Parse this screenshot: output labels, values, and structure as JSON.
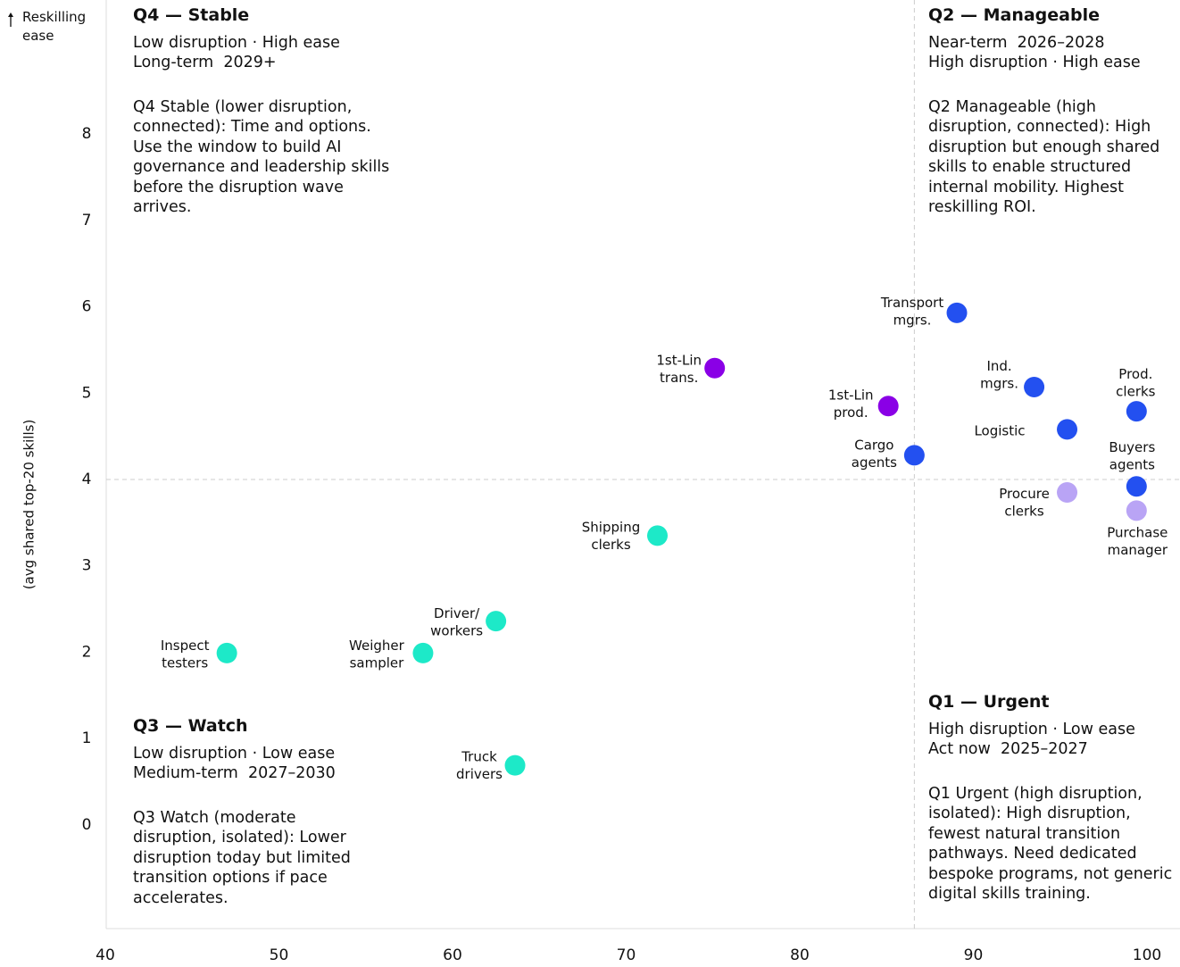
{
  "chart_data": {
    "type": "scatter",
    "y_label_top": "Reskilling ease",
    "y_label": "(avg shared top-20 skills)",
    "xlim": [
      40,
      100
    ],
    "ylim": [
      -1.2,
      9.5
    ],
    "xticks": [
      40,
      50,
      60,
      70,
      80,
      90,
      100
    ],
    "yticks": [
      0,
      1,
      2,
      3,
      4,
      5,
      6,
      7,
      8
    ],
    "x_divider": 86.6,
    "y_divider": 4,
    "x": [
      89.05,
      93.5,
      99.4,
      95.4,
      86.6,
      99.4,
      95.4,
      99.4,
      75.1,
      85.1,
      71.8,
      62.5,
      47.0,
      58.3,
      63.6
    ],
    "values": [
      5.93,
      5.07,
      4.79,
      4.58,
      4.28,
      3.92,
      3.85,
      3.64,
      5.29,
      4.85,
      3.35,
      2.36,
      1.99,
      1.99,
      0.69
    ],
    "labels": [
      [
        "Transport",
        "mgrs."
      ],
      [
        "Ind.",
        "mgrs."
      ],
      [
        "Prod.",
        "clerks"
      ],
      [
        "Logistic"
      ],
      [
        "Cargo",
        "agents"
      ],
      [
        "Buyers",
        "agents"
      ],
      [
        "Procure",
        "clerks"
      ],
      [
        "Purchase",
        "manager"
      ],
      [
        "1st-Lin",
        "trans."
      ],
      [
        "1st-Lin",
        "prod."
      ],
      [
        "Shipping",
        "clerks"
      ],
      [
        "Driver/",
        "workers"
      ],
      [
        "Inspect",
        "testers"
      ],
      [
        "Weigher",
        "sampler"
      ],
      [
        "Truck",
        "drivers"
      ]
    ],
    "colors": [
      "#2350f0",
      "#2350f0",
      "#2350f0",
      "#2350f0",
      "#2350f0",
      "#2350f0",
      "#b9a4f5",
      "#b9a4f5",
      "#8a00e6",
      "#8a00e6",
      "#1de9c8",
      "#1de9c8",
      "#1de9c8",
      "#1de9c8",
      "#1de9c8"
    ],
    "quadrants": [
      {
        "title": "Q4 — Stable",
        "lines": [
          "Low disruption · High ease",
          "Long-term  2029+"
        ],
        "description": "Q4 Stable (lower disruption, connected): Time and options. Use the window to build AI governance and leadership skills before the disruption wave arrives."
      },
      {
        "title": "Q2 — Manageable",
        "lines": [
          "Near-term  2026–2028",
          "High disruption · High ease"
        ],
        "description": "Q2 Manageable (high disruption, connected): High disruption but enough shared skills to enable structured internal mobility. Highest reskilling ROI."
      },
      {
        "title": "Q3 — Watch",
        "lines": [
          "Low disruption · Low ease",
          "Medium-term  2027–2030"
        ],
        "description": "Q3 Watch (moderate disruption, isolated): Lower disruption today but limited transition options if pace accelerates."
      },
      {
        "title": "Q1 — Urgent",
        "lines": [
          "High disruption · Low ease",
          "Act now  2025–2027"
        ],
        "description": "Q1 Urgent (high disruption, isolated): High disruption, fewest natural transition pathways. Need dedicated bespoke programs, not generic digital skills training."
      }
    ]
  }
}
